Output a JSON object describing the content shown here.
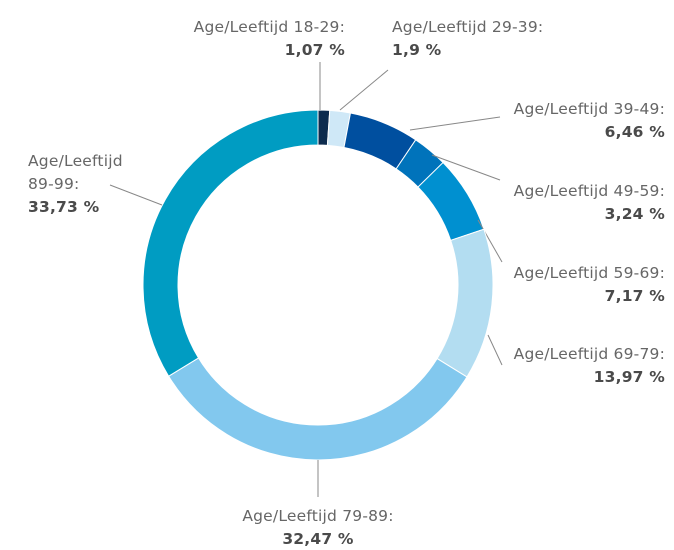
{
  "chart_data": {
    "type": "donut",
    "categories": [
      "Age/Leeftijd 18-29:",
      "Age/Leeftijd 29-39:",
      "Age/Leeftijd 39-49:",
      "Age/Leeftijd 49-59:",
      "Age/Leeftijd 59-69:",
      "Age/Leeftijd 69-79:",
      "Age/Leeftijd 79-89:",
      "Age/Leeftijd 89-99:"
    ],
    "values": [
      1.07,
      1.9,
      6.46,
      3.24,
      7.17,
      13.97,
      32.47,
      33.73
    ],
    "value_labels": [
      "1,07 %",
      "1,9 %",
      "6,46 %",
      "3,24 %",
      "7,17 %",
      "13,97 %",
      "32,47 %",
      "33,73 %"
    ],
    "colors": [
      "#0d2b4e",
      "#cfe8f7",
      "#004f9f",
      "#0073bb",
      "#0090d0",
      "#b3ddf1",
      "#82c8ee",
      "#009cc2"
    ]
  }
}
